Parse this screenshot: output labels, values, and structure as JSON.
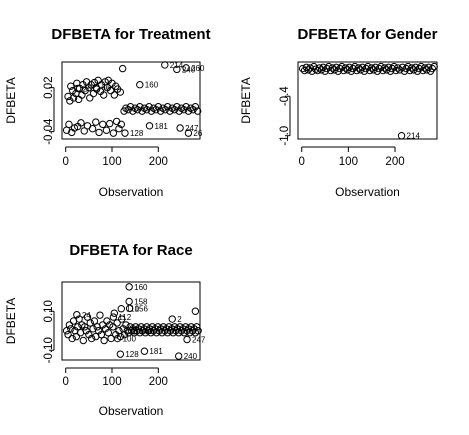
{
  "chart_data": [
    {
      "type": "scatter",
      "title": "DFBETA for Treatment",
      "xlabel": "Observation",
      "ylabel": "DFBETA",
      "xlim": [
        -8,
        290
      ],
      "ylim": [
        -0.05,
        0.055
      ],
      "xticks": [
        0,
        100,
        200
      ],
      "yticks": [
        -0.04,
        0.02
      ],
      "ytick_labels": [
        "-0.04",
        "0.02"
      ],
      "noise_points": [
        [
          2,
          -0.038
        ],
        [
          5,
          0.008
        ],
        [
          7,
          -0.03
        ],
        [
          9,
          0.002
        ],
        [
          11,
          0.022
        ],
        [
          13,
          -0.041
        ],
        [
          15,
          0.016
        ],
        [
          17,
          0.006
        ],
        [
          19,
          -0.035
        ],
        [
          22,
          0.012
        ],
        [
          24,
          0.026
        ],
        [
          26,
          -0.033
        ],
        [
          28,
          0.004
        ],
        [
          30,
          0.019
        ],
        [
          33,
          -0.028
        ],
        [
          35,
          0.01
        ],
        [
          37,
          0.024
        ],
        [
          40,
          -0.039
        ],
        [
          42,
          0.016
        ],
        [
          45,
          0.028
        ],
        [
          47,
          -0.032
        ],
        [
          50,
          0.02
        ],
        [
          52,
          0.006
        ],
        [
          55,
          0.024
        ],
        [
          58,
          -0.036
        ],
        [
          60,
          0.012
        ],
        [
          62,
          0.027
        ],
        [
          65,
          -0.027
        ],
        [
          67,
          0.018
        ],
        [
          70,
          0.03
        ],
        [
          72,
          -0.041
        ],
        [
          75,
          0.015
        ],
        [
          77,
          0.024
        ],
        [
          80,
          -0.03
        ],
        [
          82,
          0.01
        ],
        [
          85,
          0.028
        ],
        [
          88,
          -0.038
        ],
        [
          90,
          0.02
        ],
        [
          92,
          0.03
        ],
        [
          95,
          -0.029
        ],
        [
          97,
          0.016
        ],
        [
          100,
          0.026
        ],
        [
          103,
          -0.042
        ],
        [
          105,
          0.01
        ],
        [
          108,
          0.022
        ],
        [
          110,
          -0.026
        ],
        [
          112,
          0.018
        ],
        [
          115,
          -0.036
        ],
        [
          118,
          0.014
        ],
        [
          120,
          -0.03
        ],
        [
          123,
          0.046
        ],
        [
          126,
          -0.012
        ],
        [
          130,
          -0.008
        ],
        [
          135,
          -0.01
        ],
        [
          140,
          -0.006
        ],
        [
          145,
          -0.012
        ],
        [
          150,
          -0.008
        ],
        [
          155,
          -0.01
        ],
        [
          160,
          -0.006
        ],
        [
          165,
          -0.012
        ],
        [
          170,
          -0.008
        ],
        [
          175,
          -0.01
        ],
        [
          180,
          -0.006
        ],
        [
          185,
          -0.012
        ],
        [
          190,
          -0.008
        ],
        [
          195,
          -0.01
        ],
        [
          200,
          -0.006
        ],
        [
          205,
          -0.012
        ],
        [
          210,
          -0.008
        ],
        [
          215,
          -0.01
        ],
        [
          220,
          -0.006
        ],
        [
          225,
          -0.012
        ],
        [
          230,
          -0.008
        ],
        [
          235,
          -0.01
        ],
        [
          240,
          -0.006
        ],
        [
          245,
          -0.012
        ],
        [
          250,
          -0.008
        ],
        [
          255,
          -0.01
        ],
        [
          260,
          -0.006
        ],
        [
          265,
          -0.012
        ],
        [
          270,
          -0.008
        ],
        [
          275,
          -0.01
        ],
        [
          280,
          -0.006
        ],
        [
          285,
          -0.012
        ]
      ],
      "labeled_points": [
        {
          "x": 66,
          "y": 0.02,
          "label": "66"
        },
        {
          "x": 160,
          "y": 0.024,
          "label": "160"
        },
        {
          "x": 214,
          "y": 0.051,
          "label": "214"
        },
        {
          "x": 240,
          "y": 0.045,
          "label": "240"
        },
        {
          "x": 260,
          "y": 0.047,
          "label": "260"
        },
        {
          "x": 26,
          "y": 0.019,
          "label": "26"
        },
        {
          "x": 181,
          "y": -0.032,
          "label": "181"
        },
        {
          "x": 128,
          "y": -0.042,
          "label": "128"
        },
        {
          "x": 247,
          "y": -0.035,
          "label": "247"
        },
        {
          "x": 265,
          "y": -0.042,
          "label": "26"
        }
      ]
    },
    {
      "type": "scatter",
      "title": "DFBETA for Gender",
      "xlabel": "Observation",
      "ylabel": "DFBETA",
      "xlim": [
        -8,
        290
      ],
      "ylim": [
        -1.05,
        0.12
      ],
      "xticks": [
        0,
        100,
        200
      ],
      "yticks": [
        -1.0,
        -0.4
      ],
      "ytick_labels": [
        "-1.0",
        "-0.4"
      ],
      "noise_points": [
        [
          2,
          0.02
        ],
        [
          6,
          -0.01
        ],
        [
          10,
          0.04
        ],
        [
          14,
          0.0
        ],
        [
          18,
          0.03
        ],
        [
          22,
          -0.02
        ],
        [
          26,
          0.05
        ],
        [
          30,
          0.01
        ],
        [
          34,
          -0.01
        ],
        [
          38,
          0.03
        ],
        [
          42,
          0.0
        ],
        [
          46,
          0.04
        ],
        [
          50,
          -0.02
        ],
        [
          54,
          0.02
        ],
        [
          58,
          0.05
        ],
        [
          62,
          -0.01
        ],
        [
          66,
          0.03
        ],
        [
          70,
          0.0
        ],
        [
          74,
          0.04
        ],
        [
          78,
          -0.02
        ],
        [
          82,
          0.02
        ],
        [
          86,
          0.05
        ],
        [
          90,
          -0.01
        ],
        [
          94,
          0.03
        ],
        [
          98,
          0.0
        ],
        [
          102,
          0.04
        ],
        [
          106,
          -0.02
        ],
        [
          110,
          0.02
        ],
        [
          114,
          0.05
        ],
        [
          118,
          -0.01
        ],
        [
          122,
          0.03
        ],
        [
          126,
          0.0
        ],
        [
          130,
          0.04
        ],
        [
          134,
          -0.02
        ],
        [
          138,
          0.02
        ],
        [
          142,
          0.05
        ],
        [
          146,
          -0.01
        ],
        [
          150,
          0.03
        ],
        [
          154,
          0.0
        ],
        [
          158,
          0.04
        ],
        [
          162,
          -0.02
        ],
        [
          166,
          0.02
        ],
        [
          170,
          0.05
        ],
        [
          174,
          -0.01
        ],
        [
          178,
          0.03
        ],
        [
          182,
          0.0
        ],
        [
          186,
          0.04
        ],
        [
          190,
          -0.02
        ],
        [
          194,
          0.02
        ],
        [
          198,
          0.05
        ],
        [
          202,
          -0.01
        ],
        [
          206,
          0.03
        ],
        [
          210,
          0.0
        ],
        [
          216,
          0.04
        ],
        [
          220,
          -0.02
        ],
        [
          224,
          0.02
        ],
        [
          228,
          0.05
        ],
        [
          232,
          -0.01
        ],
        [
          236,
          0.03
        ],
        [
          240,
          0.0
        ],
        [
          244,
          0.04
        ],
        [
          248,
          -0.02
        ],
        [
          252,
          0.02
        ],
        [
          256,
          0.05
        ],
        [
          260,
          -0.01
        ],
        [
          264,
          0.03
        ],
        [
          268,
          0.0
        ],
        [
          272,
          0.04
        ],
        [
          276,
          -0.02
        ],
        [
          280,
          0.02
        ],
        [
          284,
          0.05
        ]
      ],
      "labeled_points": [
        {
          "x": 214,
          "y": -1.0,
          "label": "214"
        }
      ]
    },
    {
      "type": "scatter",
      "title": "DFBETA for Race",
      "xlabel": "Observation",
      "ylabel": "DFBETA",
      "xlim": [
        -8,
        290
      ],
      "ylim": [
        -0.15,
        0.25
      ],
      "xticks": [
        0,
        100,
        200
      ],
      "yticks": [
        -0.1,
        0.1
      ],
      "ytick_labels": [
        "-0.10",
        "0.10"
      ],
      "noise_points": [
        [
          2,
          0.0
        ],
        [
          5,
          -0.02
        ],
        [
          8,
          0.03
        ],
        [
          11,
          0.01
        ],
        [
          14,
          -0.04
        ],
        [
          17,
          0.05
        ],
        [
          20,
          0.0
        ],
        [
          23,
          -0.03
        ],
        [
          26,
          0.02
        ],
        [
          29,
          0.06
        ],
        [
          32,
          -0.01
        ],
        [
          35,
          0.03
        ],
        [
          38,
          -0.05
        ],
        [
          41,
          0.02
        ],
        [
          44,
          0.0
        ],
        [
          47,
          0.07
        ],
        [
          50,
          -0.02
        ],
        [
          53,
          0.04
        ],
        [
          56,
          -0.04
        ],
        [
          59,
          0.01
        ],
        [
          62,
          0.05
        ],
        [
          65,
          -0.03
        ],
        [
          68,
          0.02
        ],
        [
          71,
          0.0
        ],
        [
          74,
          0.08
        ],
        [
          77,
          -0.02
        ],
        [
          80,
          0.03
        ],
        [
          83,
          -0.05
        ],
        [
          86,
          0.01
        ],
        [
          89,
          0.05
        ],
        [
          92,
          -0.01
        ],
        [
          95,
          0.03
        ],
        [
          98,
          -0.04
        ],
        [
          102,
          0.02
        ],
        [
          105,
          0.09
        ],
        [
          108,
          -0.02
        ],
        [
          111,
          0.04
        ],
        [
          115,
          0.0
        ],
        [
          118,
          -0.03
        ],
        [
          121,
          0.06
        ],
        [
          124,
          0.01
        ],
        [
          127,
          -0.02
        ],
        [
          130,
          0.03
        ],
        [
          133,
          0.0
        ],
        [
          136,
          -0.01
        ],
        [
          139,
          0.02
        ],
        [
          142,
          0.0
        ],
        [
          145,
          0.01
        ],
        [
          148,
          -0.01
        ],
        [
          151,
          0.02
        ],
        [
          154,
          0.0
        ],
        [
          157,
          0.01
        ],
        [
          160,
          -0.01
        ],
        [
          163,
          0.02
        ],
        [
          166,
          0.0
        ],
        [
          169,
          0.01
        ],
        [
          172,
          -0.01
        ],
        [
          175,
          0.02
        ],
        [
          178,
          0.0
        ],
        [
          181,
          0.01
        ],
        [
          184,
          -0.01
        ],
        [
          187,
          0.02
        ],
        [
          190,
          0.0
        ],
        [
          193,
          0.01
        ],
        [
          196,
          -0.01
        ],
        [
          199,
          0.02
        ],
        [
          202,
          0.0
        ],
        [
          205,
          0.01
        ],
        [
          208,
          -0.01
        ],
        [
          211,
          0.02
        ],
        [
          214,
          0.0
        ],
        [
          217,
          0.01
        ],
        [
          220,
          -0.01
        ],
        [
          223,
          0.02
        ],
        [
          226,
          0.0
        ],
        [
          229,
          0.01
        ],
        [
          232,
          -0.01
        ],
        [
          235,
          0.02
        ],
        [
          238,
          0.0
        ],
        [
          241,
          0.01
        ],
        [
          244,
          -0.01
        ],
        [
          247,
          0.02
        ],
        [
          250,
          0.0
        ],
        [
          253,
          0.01
        ],
        [
          256,
          -0.01
        ],
        [
          259,
          0.02
        ],
        [
          262,
          0.0
        ],
        [
          265,
          0.01
        ],
        [
          268,
          -0.01
        ],
        [
          271,
          0.02
        ],
        [
          274,
          0.0
        ],
        [
          277,
          0.01
        ],
        [
          280,
          -0.01
        ],
        [
          283,
          0.02
        ],
        [
          286,
          0.0
        ]
      ],
      "labeled_points": [
        {
          "x": 137,
          "y": 0.225,
          "label": "160"
        },
        {
          "x": 137,
          "y": 0.15,
          "label": "158"
        },
        {
          "x": 138,
          "y": 0.115,
          "label": "156"
        },
        {
          "x": 120,
          "y": 0.113,
          "label": "110"
        },
        {
          "x": 24,
          "y": 0.082,
          "label": "24"
        },
        {
          "x": 103,
          "y": 0.07,
          "label": "112"
        },
        {
          "x": 112,
          "y": -0.04,
          "label": "100"
        },
        {
          "x": 148,
          "y": 0.0,
          "label": "143"
        },
        {
          "x": 230,
          "y": 0.06,
          "label": "2"
        },
        {
          "x": 280,
          "y": 0.1,
          "label": ""
        },
        {
          "x": 262,
          "y": -0.045,
          "label": "247"
        },
        {
          "x": 118,
          "y": -0.12,
          "label": "128"
        },
        {
          "x": 170,
          "y": -0.105,
          "label": "181"
        },
        {
          "x": 244,
          "y": -0.13,
          "label": "240"
        }
      ]
    }
  ]
}
